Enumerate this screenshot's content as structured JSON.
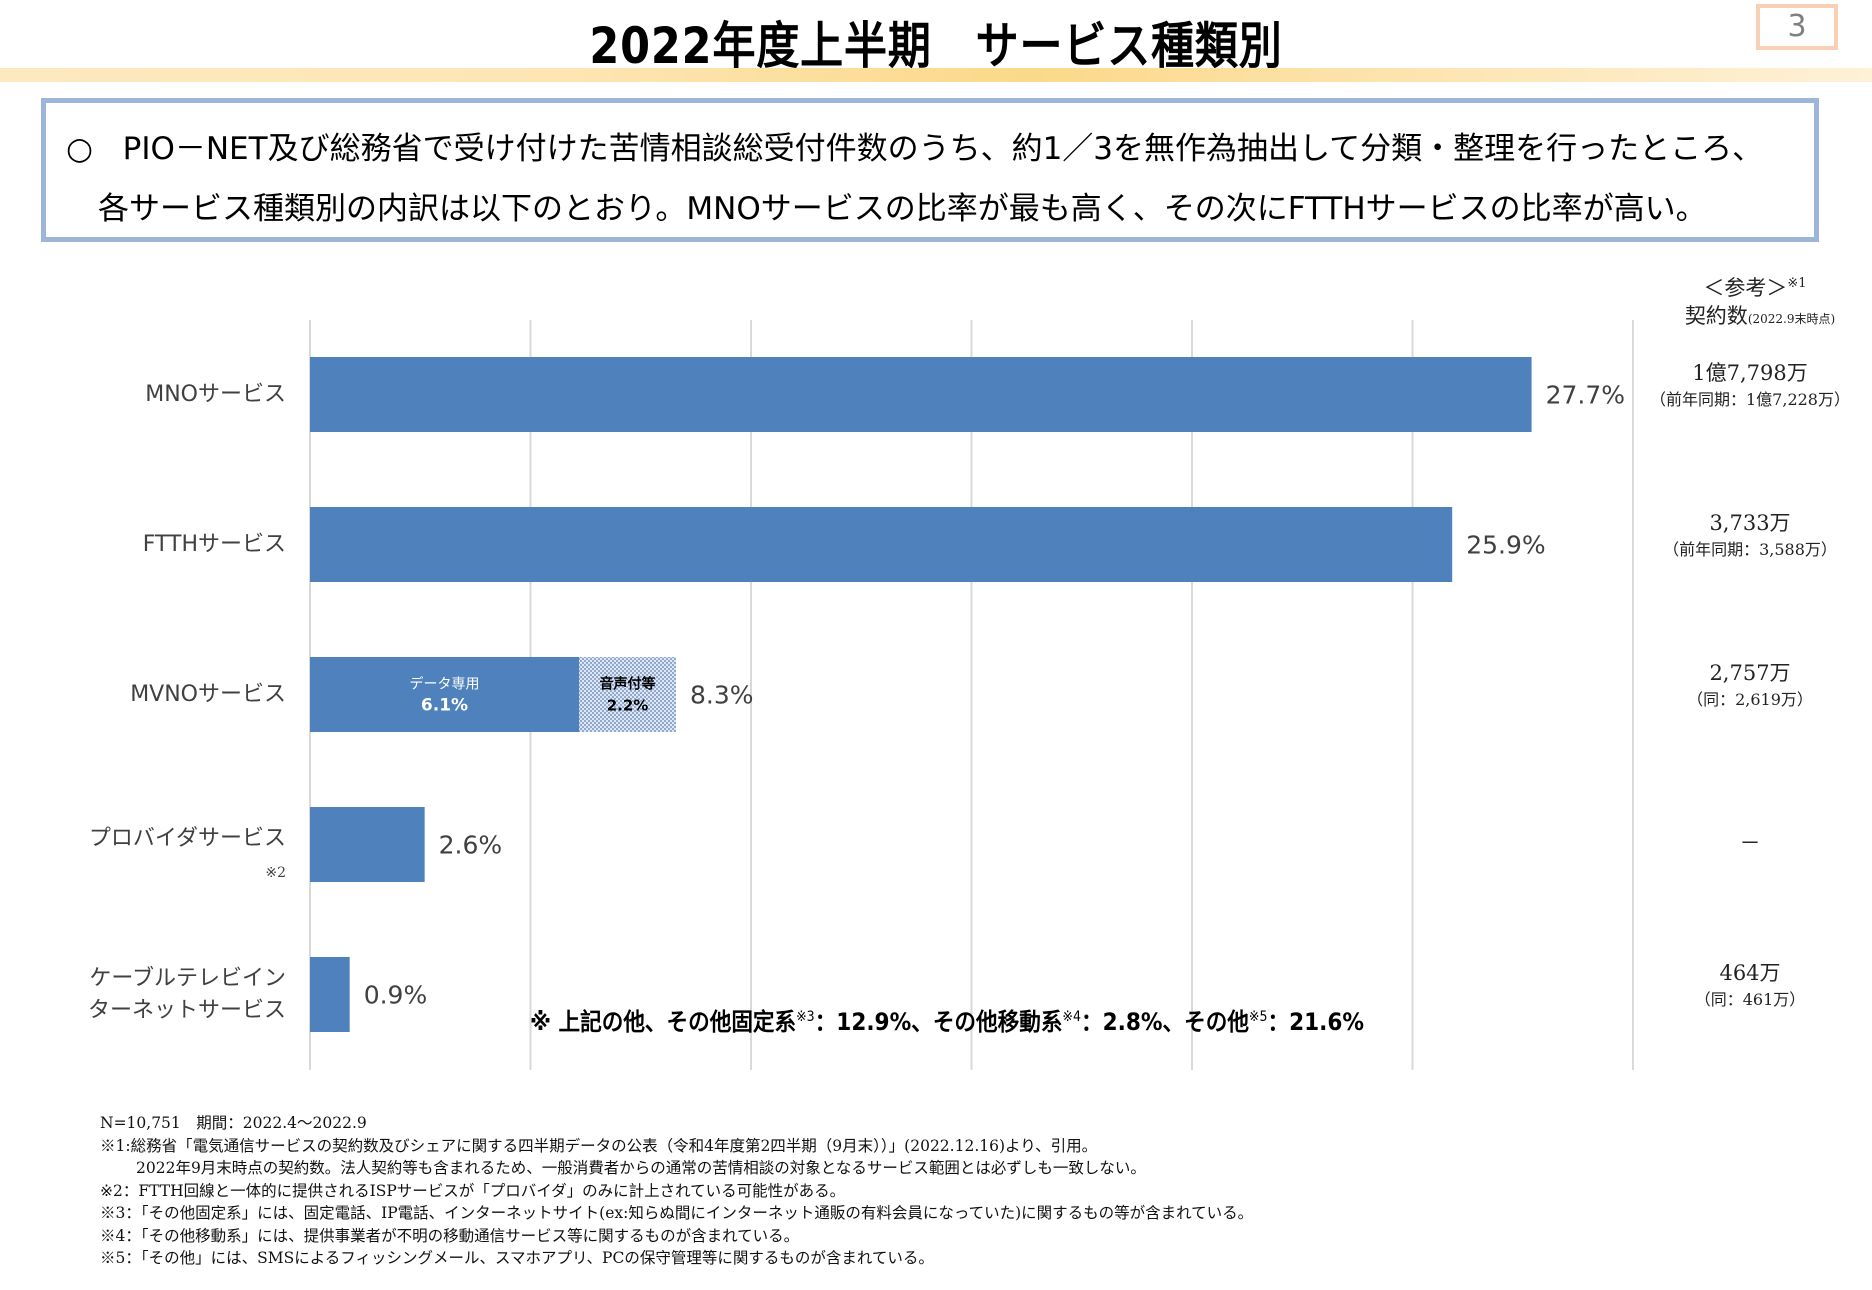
{
  "header": {
    "title": "2022年度上半期　サービス種類別",
    "page_number": "3"
  },
  "description": {
    "bullet": "○",
    "line1": "PIO－NET及び総務省で受け付けた苦情相談総受付件数のうち、約1／3を無作為抽出して分類・整理を行ったところ、",
    "line2": "各サービス種類別の内訳は以下のとおり。MNOサービスの比率が最も高く、その次にFTTHサービスの比率が高い。"
  },
  "reference": {
    "heading": "＜参考＞",
    "heading_note": "※1",
    "subheading": "契約数",
    "subheading_note": "(2022.9末時点)",
    "rows": [
      {
        "main": "1億7,798万",
        "prev": "（前年同期：1億7,228万）"
      },
      {
        "main": "3,733万",
        "prev": "（前年同期：3,588万）"
      },
      {
        "main": "2,757万",
        "prev": "（同：2,619万）"
      },
      {
        "main": "－",
        "prev": ""
      },
      {
        "main": "464万",
        "prev": "（同：461万）"
      }
    ]
  },
  "chart_data": {
    "type": "bar",
    "orientation": "horizontal",
    "title": "2022年度上半期　サービス種類別",
    "xlabel": "",
    "ylabel": "",
    "xlim": [
      0,
      30
    ],
    "xticks": [
      0,
      5,
      10,
      15,
      20,
      25,
      30
    ],
    "grid": true,
    "unit": "%",
    "bar_color": "#4f81bd",
    "categories": [
      {
        "label_lines": [
          "MNOサービス"
        ],
        "note": "",
        "value": 27.7,
        "value_label": "27.7%"
      },
      {
        "label_lines": [
          "FTTHサービス"
        ],
        "note": "",
        "value": 25.9,
        "value_label": "25.9%"
      },
      {
        "label_lines": [
          "MVNOサービス"
        ],
        "note": "",
        "value": 8.3,
        "value_label": "8.3%",
        "segments": [
          {
            "name": "データ専用",
            "value": 6.1,
            "value_label": "6.1%",
            "style": "solid"
          },
          {
            "name": "音声付等",
            "value": 2.2,
            "value_label": "2.2%",
            "style": "dotted"
          }
        ]
      },
      {
        "label_lines": [
          "プロバイダサービス"
        ],
        "note": "※2",
        "value": 2.6,
        "value_label": "2.6%"
      },
      {
        "label_lines": [
          "ケーブルテレビイン",
          "ターネットサービス"
        ],
        "note": "",
        "value": 0.9,
        "value_label": "0.9%"
      }
    ],
    "annotation": {
      "prefix": "※ 上記の他、その他固定系",
      "n3": "※3",
      "t1": "：12.9%、その他移動系",
      "n4": "※4",
      "t2": "：2.8%、その他",
      "n5": "※5",
      "t3": "：21.6%"
    }
  },
  "footnotes": [
    "N=10,751　期間：2022.4～2022.9",
    "※1:総務省「電気通信サービスの契約数及びシェアに関する四半期データの公表（令和4年度第2四半期（9月末））」(2022.12.16)より、引用。",
    "2022年9月末時点の契約数。法人契約等も含まれるため、一般消費者からの通常の苦情相談の対象となるサービス範囲とは必ずしも一致しない。",
    "※2：FTTH回線と一体的に提供されるISPサービスが「プロバイダ」のみに計上されている可能性がある。",
    "※3：「その他固定系」には、固定電話、IP電話、インターネットサイト(ex:知らぬ間にインターネット通販の有料会員になっていた)に関するもの等が含まれている。",
    "※4：「その他移動系」には、提供事業者が不明の移動通信サービス等に関するものが含まれている。",
    "※5：「その他」には、SMSによるフィッシングメール、スマホアプリ、PCの保守管理等に関するものが含まれている。"
  ]
}
